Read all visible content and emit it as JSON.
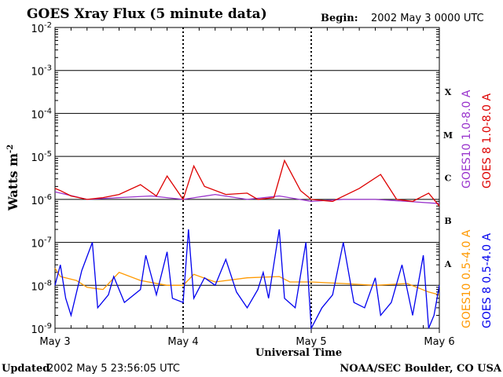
{
  "header": {
    "title": "GOES Xray Flux (5 minute data)",
    "begin_label": "Begin:",
    "begin_value": "2002 May 3 0000 UTC"
  },
  "footer": {
    "updated_label": "Updated",
    "updated_value": "2002 May  5 23:56:05 UTC",
    "credit": "NOAA/SEC Boulder, CO USA"
  },
  "chart_data": {
    "type": "line",
    "title": "GOES Xray Flux (5 minute data)",
    "xlabel": "Universal Time",
    "ylabel": "Watts m",
    "ylabel_superscript": "-2",
    "yscale": "log",
    "ylim": [
      1e-09,
      0.01
    ],
    "y_ticks": [
      {
        "value": 0.01,
        "base": "10",
        "exp": "-2"
      },
      {
        "value": 0.001,
        "base": "10",
        "exp": "-3"
      },
      {
        "value": 0.0001,
        "base": "10",
        "exp": "-4"
      },
      {
        "value": 1e-05,
        "base": "10",
        "exp": "-5"
      },
      {
        "value": 1e-06,
        "base": "10",
        "exp": "-6"
      },
      {
        "value": 1e-07,
        "base": "10",
        "exp": "-7"
      },
      {
        "value": 1e-08,
        "base": "10",
        "exp": "-8"
      },
      {
        "value": 1e-09,
        "base": "10",
        "exp": "-9"
      }
    ],
    "x_ticks": [
      "May 3",
      "May 4",
      "May 5",
      "May 6"
    ],
    "xlim": [
      "2002-05-03 00:00",
      "2002-05-06 00:00"
    ],
    "flare_classes": [
      {
        "label": "X",
        "lower": 0.0001
      },
      {
        "label": "M",
        "lower": 1e-05
      },
      {
        "label": "C",
        "lower": 1e-06
      },
      {
        "label": "B",
        "lower": 1e-07
      },
      {
        "label": "A",
        "lower": 1e-08
      }
    ],
    "grid": true,
    "series": [
      {
        "name": "GOES10 1.0-8.0 A",
        "color": "#9933cc",
        "x": [
          "2002-05-03 00:00",
          "2002-05-03 06:00",
          "2002-05-03 12:00",
          "2002-05-03 18:00",
          "2002-05-04 00:00",
          "2002-05-04 06:00",
          "2002-05-04 12:00",
          "2002-05-04 18:00",
          "2002-05-05 00:00",
          "2002-05-05 06:00",
          "2002-05-05 12:00",
          "2002-05-05 18:00",
          "2002-05-06 00:00"
        ],
        "values": [
          1.5e-06,
          1e-06,
          1.1e-06,
          1.2e-06,
          1e-06,
          1.3e-06,
          1e-06,
          1.2e-06,
          9e-07,
          1e-06,
          1e-06,
          9e-07,
          8e-07
        ]
      },
      {
        "name": "GOES 8 1.0-8.0 A",
        "color": "#dd0000",
        "x": [
          "2002-05-03 00:00",
          "2002-05-03 01:00",
          "2002-05-03 03:00",
          "2002-05-03 06:00",
          "2002-05-03 09:00",
          "2002-05-03 12:00",
          "2002-05-03 16:00",
          "2002-05-03 19:00",
          "2002-05-03 21:00",
          "2002-05-04 00:00",
          "2002-05-04 02:00",
          "2002-05-04 04:00",
          "2002-05-04 08:00",
          "2002-05-04 12:00",
          "2002-05-04 14:00",
          "2002-05-04 17:00",
          "2002-05-04 19:00",
          "2002-05-04 22:00",
          "2002-05-05 00:00",
          "2002-05-05 04:00",
          "2002-05-05 09:00",
          "2002-05-05 13:00",
          "2002-05-05 16:00",
          "2002-05-05 19:00",
          "2002-05-05 22:00",
          "2002-05-06 00:00"
        ],
        "values": [
          1.8e-06,
          1.6e-06,
          1.2e-06,
          1e-06,
          1.1e-06,
          1.3e-06,
          2.2e-06,
          1.2e-06,
          3.5e-06,
          1e-06,
          6e-06,
          2e-06,
          1.3e-06,
          1.4e-06,
          1e-06,
          1.1e-06,
          8e-06,
          1.6e-06,
          1e-06,
          9e-07,
          1.8e-06,
          3.8e-06,
          1e-06,
          9e-07,
          1.4e-06,
          7e-07
        ]
      },
      {
        "name": "GOES10 0.5-4.0 A",
        "color": "#ff9900",
        "x": [
          "2002-05-03 00:00",
          "2002-05-03 01:00",
          "2002-05-03 04:00",
          "2002-05-03 06:00",
          "2002-05-03 09:00",
          "2002-05-03 12:00",
          "2002-05-03 16:00",
          "2002-05-03 21:00",
          "2002-05-04 00:00",
          "2002-05-04 02:00",
          "2002-05-04 06:00",
          "2002-05-04 12:00",
          "2002-05-04 18:00",
          "2002-05-04 20:00",
          "2002-05-05 00:00",
          "2002-05-05 06:00",
          "2002-05-05 12:00",
          "2002-05-05 18:00",
          "2002-05-05 22:00",
          "2002-05-06 00:00"
        ],
        "values": [
          2.5e-08,
          1.6e-08,
          1.3e-08,
          9e-09,
          8e-09,
          2e-08,
          1.3e-08,
          1e-08,
          1e-08,
          1.8e-08,
          1.2e-08,
          1.5e-08,
          1.6e-08,
          1.2e-08,
          1.2e-08,
          1.1e-08,
          1e-08,
          1.1e-08,
          7e-09,
          6e-09
        ]
      },
      {
        "name": "GOES 8 0.5-4.0 A",
        "color": "#0000ee",
        "x": [
          "2002-05-03 00:00",
          "2002-05-03 01:00",
          "2002-05-03 02:00",
          "2002-05-03 03:00",
          "2002-05-03 05:00",
          "2002-05-03 07:00",
          "2002-05-03 08:00",
          "2002-05-03 10:00",
          "2002-05-03 11:00",
          "2002-05-03 13:00",
          "2002-05-03 16:00",
          "2002-05-03 17:00",
          "2002-05-03 19:00",
          "2002-05-03 21:00",
          "2002-05-03 22:00",
          "2002-05-04 00:00",
          "2002-05-04 01:00",
          "2002-05-04 02:00",
          "2002-05-04 04:00",
          "2002-05-04 06:00",
          "2002-05-04 08:00",
          "2002-05-04 10:00",
          "2002-05-04 12:00",
          "2002-05-04 14:00",
          "2002-05-04 15:00",
          "2002-05-04 16:00",
          "2002-05-04 18:00",
          "2002-05-04 19:00",
          "2002-05-04 21:00",
          "2002-05-04 23:00",
          "2002-05-05 00:00",
          "2002-05-05 02:00",
          "2002-05-05 04:00",
          "2002-05-05 06:00",
          "2002-05-05 08:00",
          "2002-05-05 10:00",
          "2002-05-05 12:00",
          "2002-05-05 13:00",
          "2002-05-05 15:00",
          "2002-05-05 17:00",
          "2002-05-05 19:00",
          "2002-05-05 21:00",
          "2002-05-05 22:00",
          "2002-05-05 23:00",
          "2002-05-06 00:00"
        ],
        "values": [
          1e-08,
          3e-08,
          5e-09,
          2e-09,
          2.2e-08,
          1e-07,
          3e-09,
          6e-09,
          1.6e-08,
          4e-09,
          8e-09,
          5e-08,
          6e-09,
          6e-08,
          5e-09,
          4e-09,
          2e-07,
          5e-09,
          1.5e-08,
          1e-08,
          4e-08,
          7e-09,
          3e-09,
          8e-09,
          2e-08,
          5e-09,
          2e-07,
          5e-09,
          3e-09,
          1e-07,
          1e-09,
          3e-09,
          6e-09,
          1e-07,
          4e-09,
          3e-09,
          1.5e-08,
          2e-09,
          4e-09,
          3e-08,
          2e-09,
          5e-08,
          1e-09,
          2e-09,
          1e-08
        ]
      }
    ]
  }
}
